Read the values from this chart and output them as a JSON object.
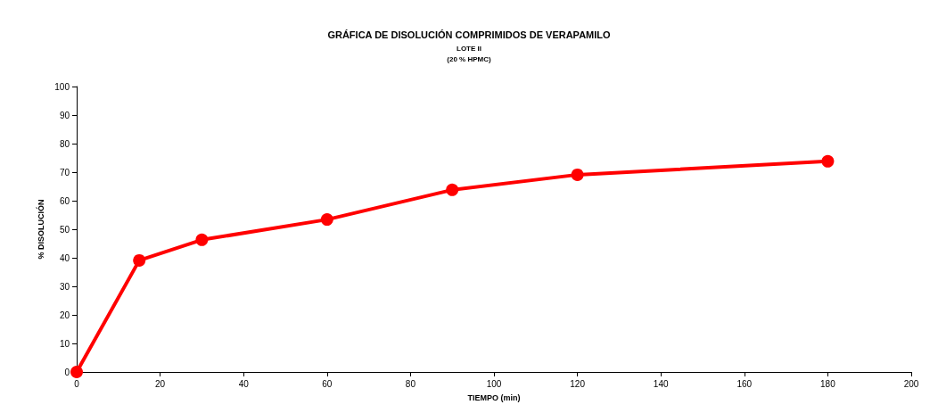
{
  "chart_data": {
    "type": "line",
    "title": "GRÁFICA DE DISOLUCIÓN COMPRIMIDOS DE VERAPAMILO",
    "subtitle": "LOTE II\n(20 % HPMC)",
    "xlabel": "TIEMPO (min)",
    "ylabel": "% DISOLUCIÓN",
    "x": [
      0,
      15,
      30,
      60,
      90,
      120,
      180
    ],
    "series": [
      {
        "color": "#ff0000",
        "values": [
          0,
          39.1,
          46.3,
          53.4,
          63.8,
          69.1,
          73.8
        ]
      }
    ],
    "xlim": [
      0,
      200
    ],
    "xticks": [
      0,
      20,
      40,
      60,
      80,
      100,
      120,
      140,
      160,
      180,
      200
    ],
    "ylim": [
      0,
      100
    ],
    "yticks": [
      0,
      10,
      20,
      30,
      40,
      50,
      60,
      70,
      80,
      90,
      100
    ],
    "grid": false,
    "marker": "circle",
    "line_style": "solid"
  }
}
